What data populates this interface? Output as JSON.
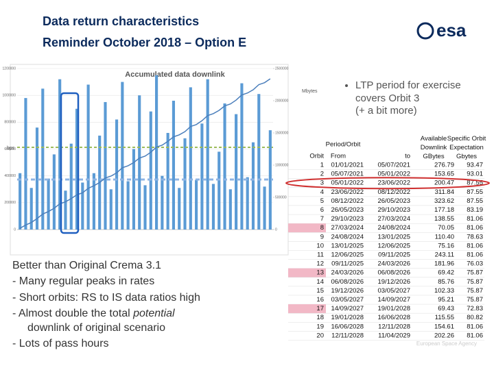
{
  "header": {
    "title": "Data return characteristics",
    "subtitle": "Reminder October 2018 – Option E",
    "logo": "esa"
  },
  "chart_data": {
    "type": "bar",
    "title": "Accumulated data downlink",
    "y_label": "bps",
    "y2_label": "Mbytes",
    "color": "#5b9bd5",
    "values": [
      420000,
      980000,
      310000,
      760000,
      1050000,
      380000,
      560000,
      1120000,
      290000,
      640000,
      900000,
      350000,
      1080000,
      420000,
      700000,
      950000,
      300000,
      820000,
      1100000,
      360000,
      600000,
      1000000,
      330000,
      880000,
      1150000,
      400000,
      720000,
      960000,
      310000,
      680000,
      1060000,
      370000,
      790000,
      1120000,
      340000,
      580000,
      940000,
      300000,
      860000,
      1090000,
      390000,
      650000,
      1010000,
      320000,
      740000
    ],
    "line": {
      "axis": "y2",
      "color": "#4a7ebb",
      "values": [
        20000,
        70000,
        110000,
        170000,
        240000,
        280000,
        330000,
        400000,
        430000,
        480000,
        540000,
        570000,
        640000,
        680000,
        730000,
        800000,
        830000,
        880000,
        960000,
        990000,
        1040000,
        1110000,
        1140000,
        1200000,
        1280000,
        1310000,
        1370000,
        1440000,
        1470000,
        1520000,
        1600000,
        1630000,
        1690000,
        1770000,
        1800000,
        1850000,
        1920000,
        1950000,
        2010000,
        2090000,
        2120000,
        2170000,
        2250000,
        2280000,
        2340000
      ]
    },
    "ylim": [
      0,
      1200000
    ],
    "yticks": [
      0,
      200000,
      400000,
      600000,
      800000,
      1000000,
      1200000
    ],
    "y2lim": [
      0,
      2500000
    ],
    "y2ticks": [
      0,
      500000,
      1000000,
      1500000,
      2000000,
      2500000
    ],
    "grid": true
  },
  "note": [
    "LTP period for exercise",
    "covers Orbit 3",
    "(+ a bit more)"
  ],
  "summary": {
    "lead": "Better than Original Crema 3.1",
    "items": [
      [
        "- Many regular peaks in rates"
      ],
      [
        "- Short orbits: RS to IS data ratios high"
      ],
      [
        "- Almost double the total ",
        "potential",
        "downlink of original scenario"
      ],
      [
        "- Lots of pass hours"
      ]
    ]
  },
  "table": {
    "group_header": "Period/Orbit",
    "columns": [
      "Orbit",
      "From",
      "to",
      "Available Downlink GBytes",
      "Specific Orbit Expectation Gbytes"
    ],
    "rows": [
      {
        "cells": [
          "1",
          "01/01/2021",
          "05/07/2021",
          "276.79",
          "93.47"
        ],
        "highlight": false
      },
      {
        "cells": [
          "2",
          "05/07/2021",
          "05/01/2022",
          "153.65",
          "93.01"
        ],
        "highlight": false
      },
      {
        "cells": [
          "3",
          "05/01/2022",
          "23/06/2022",
          "200.47",
          "87.55"
        ],
        "highlight": false
      },
      {
        "cells": [
          "4",
          "23/06/2022",
          "08/12/2022",
          "311.84",
          "87.55"
        ],
        "highlight": false
      },
      {
        "cells": [
          "5",
          "08/12/2022",
          "26/05/2023",
          "323.62",
          "87.55"
        ],
        "highlight": false
      },
      {
        "cells": [
          "6",
          "26/05/2023",
          "29/10/2023",
          "177.18",
          "83.19"
        ],
        "highlight": false
      },
      {
        "cells": [
          "7",
          "29/10/2023",
          "27/03/2024",
          "138.55",
          "81.06"
        ],
        "highlight": false
      },
      {
        "cells": [
          "8",
          "27/03/2024",
          "24/08/2024",
          "70.05",
          "81.06"
        ],
        "highlight": true
      },
      {
        "cells": [
          "9",
          "24/08/2024",
          "13/01/2025",
          "110.40",
          "78.63"
        ],
        "highlight": false
      },
      {
        "cells": [
          "10",
          "13/01/2025",
          "12/06/2025",
          "75.16",
          "81.06"
        ],
        "highlight": false
      },
      {
        "cells": [
          "11",
          "12/06/2025",
          "09/11/2025",
          "243.11",
          "81.06"
        ],
        "highlight": false
      },
      {
        "cells": [
          "12",
          "09/11/2025",
          "24/03/2026",
          "181.96",
          "76.03"
        ],
        "highlight": false
      },
      {
        "cells": [
          "13",
          "24/03/2026",
          "06/08/2026",
          "69.42",
          "75.87"
        ],
        "highlight": true
      },
      {
        "cells": [
          "14",
          "06/08/2026",
          "19/12/2026",
          "85.76",
          "75.87"
        ],
        "highlight": false
      },
      {
        "cells": [
          "15",
          "19/12/2026",
          "03/05/2027",
          "102.33",
          "75.87"
        ],
        "highlight": false
      },
      {
        "cells": [
          "16",
          "03/05/2027",
          "14/09/2027",
          "95.21",
          "75.87"
        ],
        "highlight": false
      },
      {
        "cells": [
          "17",
          "14/09/2027",
          "19/01/2028",
          "69.43",
          "72.83"
        ],
        "highlight": true
      },
      {
        "cells": [
          "18",
          "19/01/2028",
          "16/06/2028",
          "115.55",
          "80.82"
        ],
        "highlight": false
      },
      {
        "cells": [
          "19",
          "16/06/2028",
          "12/11/2028",
          "154.61",
          "81.06"
        ],
        "highlight": false
      },
      {
        "cells": [
          "20",
          "12/11/2028",
          "11/04/2029",
          "202.26",
          "81.06"
        ],
        "highlight": false
      }
    ]
  },
  "footer": "European Space Agency"
}
